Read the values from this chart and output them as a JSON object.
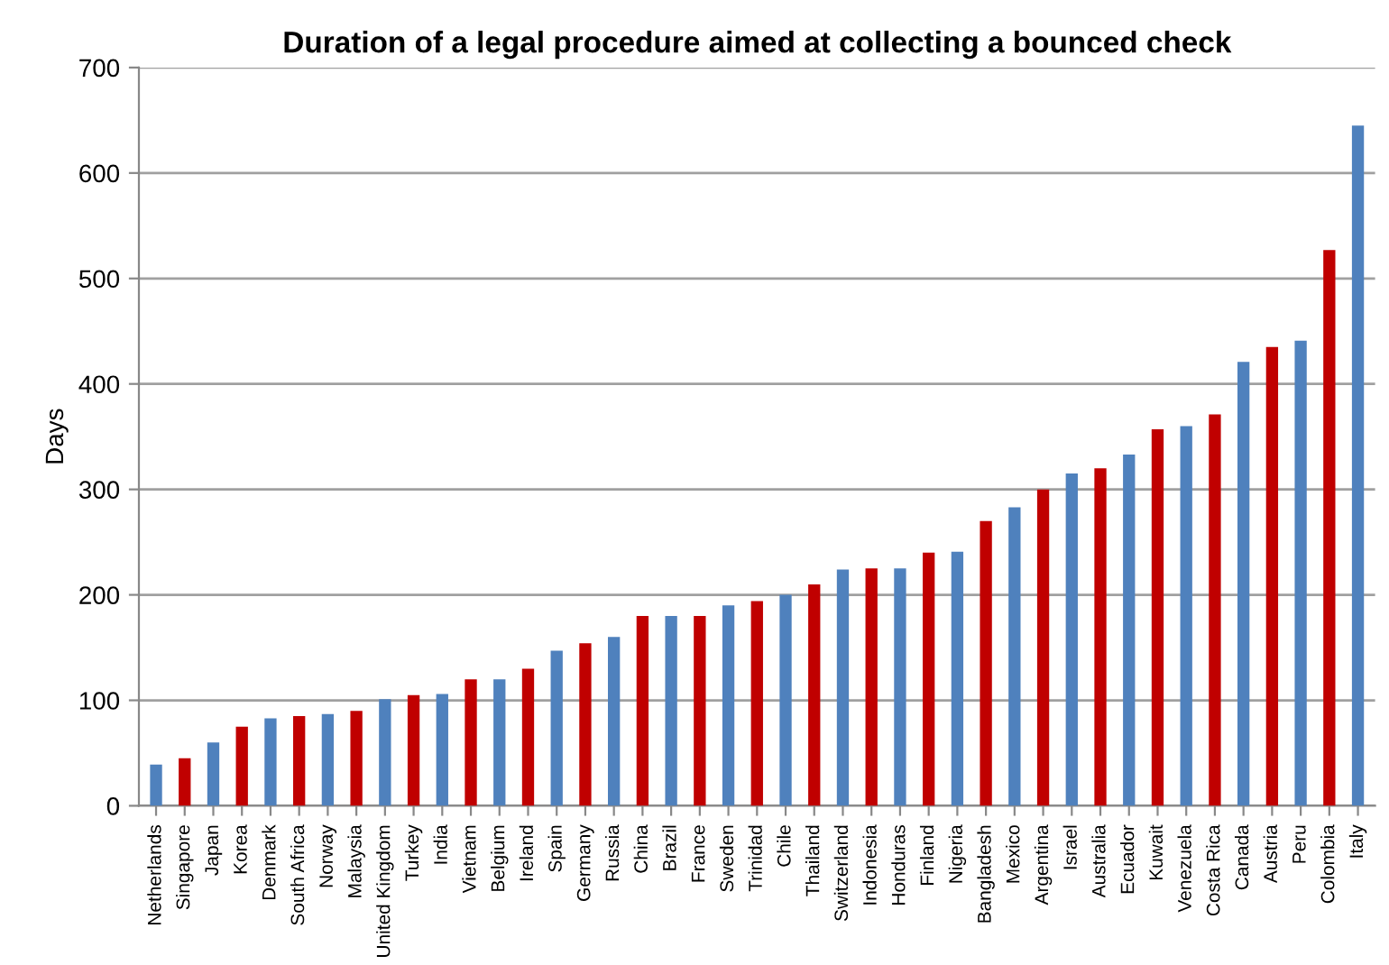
{
  "chart_data": {
    "type": "bar",
    "title": "Duration of a legal procedure aimed at collecting a bounced check",
    "ylabel": "Days",
    "categories": [
      "Netherlands",
      "Singapore",
      "Japan",
      "Korea",
      "Denmark",
      "South Africa",
      "Norway",
      "Malaysia",
      "United Kingdom",
      "Turkey",
      "India",
      "Vietnam",
      "Belgium",
      "Ireland",
      "Spain",
      "Germany",
      "Russia",
      "China",
      "Brazil",
      "France",
      "Sweden",
      "Trinidad",
      "Chile",
      "Thailand",
      "Switzerland",
      "Indonesia",
      "Honduras",
      "Finland",
      "Nigeria",
      "Bangladesh",
      "Mexico",
      "Argentina",
      "Israel",
      "Australia",
      "Ecuador",
      "Kuwait",
      "Venezuela",
      "Costa Rica",
      "Canada",
      "Austria",
      "Peru",
      "Colombia",
      "Italy"
    ],
    "values": [
      39,
      45,
      60,
      75,
      83,
      85,
      87,
      90,
      101,
      105,
      106,
      120,
      120,
      130,
      147,
      154,
      160,
      180,
      180,
      180,
      190,
      194,
      200,
      210,
      224,
      225,
      225,
      240,
      241,
      270,
      283,
      300,
      315,
      320,
      333,
      357,
      360,
      371,
      421,
      435,
      441,
      527,
      645
    ],
    "colors": [
      "#4f81bd",
      "#c00000",
      "#4f81bd",
      "#c00000",
      "#4f81bd",
      "#c00000",
      "#4f81bd",
      "#c00000",
      "#4f81bd",
      "#c00000",
      "#4f81bd",
      "#c00000",
      "#4f81bd",
      "#c00000",
      "#4f81bd",
      "#c00000",
      "#4f81bd",
      "#c00000",
      "#4f81bd",
      "#c00000",
      "#4f81bd",
      "#c00000",
      "#4f81bd",
      "#c00000",
      "#4f81bd",
      "#c00000",
      "#4f81bd",
      "#c00000",
      "#4f81bd",
      "#c00000",
      "#4f81bd",
      "#c00000",
      "#4f81bd",
      "#c00000",
      "#4f81bd",
      "#c00000",
      "#4f81bd",
      "#c00000",
      "#4f81bd",
      "#c00000",
      "#4f81bd",
      "#c00000",
      "#4f81bd"
    ],
    "ylim": [
      0,
      700
    ],
    "yticks": [
      0,
      100,
      200,
      300,
      400,
      500,
      600,
      700
    ],
    "grid": "y",
    "legend": false
  }
}
